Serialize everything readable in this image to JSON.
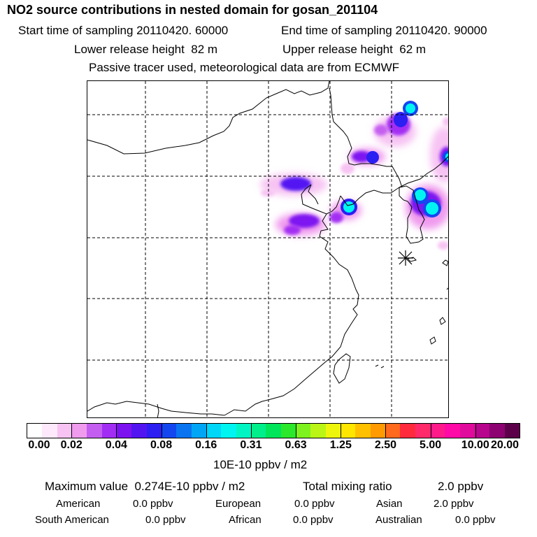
{
  "title": "NO2 source contributions in nested domain for gosan_201104",
  "header": {
    "start_label": "Start time of sampling",
    "start_value": "20110420. 60000",
    "end_label": "End time of sampling",
    "end_value": "20110420. 90000",
    "lower_label": "Lower release height",
    "lower_value": "82 m",
    "upper_label": "Upper release height",
    "upper_value": "62 m",
    "note": "Passive tracer used, meteorological data are from ECMWF"
  },
  "map": {
    "receptor_symbol": "gosan-receptor-marker",
    "plumes": [
      {
        "name": "plume-ne-north",
        "level": "high"
      },
      {
        "name": "plume-ne-tail",
        "level": "medium"
      },
      {
        "name": "plume-manchuria",
        "level": "medium-high"
      },
      {
        "name": "plume-north-china",
        "level": "medium"
      },
      {
        "name": "plume-bohai-west",
        "level": "medium"
      },
      {
        "name": "plume-liaodong",
        "level": "high"
      },
      {
        "name": "plume-korea",
        "level": "high"
      },
      {
        "name": "plume-east-edge",
        "level": "high"
      }
    ]
  },
  "colorbar": {
    "colors": [
      "#ffffff",
      "#fde9fb",
      "#f7c3f3",
      "#f09bee",
      "#c45ef0",
      "#a22ef3",
      "#7d12f0",
      "#5215f2",
      "#2b1ff2",
      "#1446f0",
      "#0a74f0",
      "#00a6f5",
      "#00d6f7",
      "#00f5f0",
      "#00f5c3",
      "#00ef8a",
      "#00e55a",
      "#2be82b",
      "#7ef21e",
      "#baf516",
      "#eef50c",
      "#ffe600",
      "#ffc000",
      "#ff9a00",
      "#ff6a1e",
      "#ff2b3c",
      "#ff2a6a",
      "#ff1a8a",
      "#ff0aa6",
      "#e00a9c",
      "#b8058e",
      "#8c0270",
      "#5c004a"
    ],
    "ticks": [
      "0.00",
      "0.02",
      "0.04",
      "0.08",
      "0.16",
      "0.31",
      "0.63",
      "1.25",
      "2.50",
      "5.00",
      "10.00",
      "20.00"
    ],
    "units": "10E-10 ppbv / m2"
  },
  "summary": {
    "max_label": "Maximum value",
    "max_value": "0.274E-10 ppbv / m2",
    "total_label": "Total mixing ratio",
    "total_value": "2.0 ppbv",
    "sources": [
      {
        "name": "American",
        "value": "0.0 ppbv"
      },
      {
        "name": "European",
        "value": "0.0 ppbv"
      },
      {
        "name": "Asian",
        "value": "2.0 ppbv"
      },
      {
        "name": "South American",
        "value": "0.0 ppbv"
      },
      {
        "name": "African",
        "value": "0.0 ppbv"
      },
      {
        "name": "Australian",
        "value": "0.0 ppbv"
      }
    ]
  }
}
